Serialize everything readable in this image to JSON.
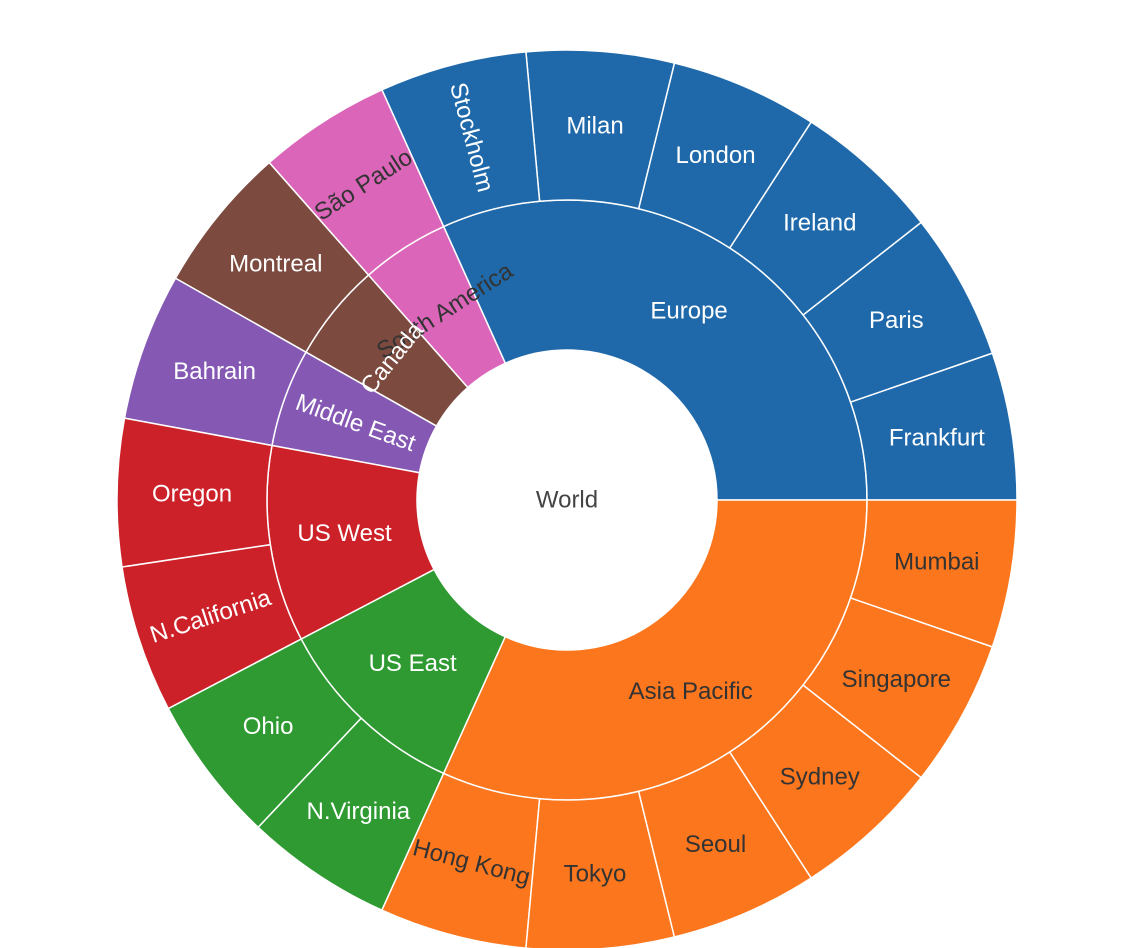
{
  "chart_data": {
    "type": "sunburst",
    "root": "World",
    "regions": [
      {
        "name": "Europe",
        "value": 6,
        "color": "#1f69aa",
        "label_color": "#ffffff",
        "children": [
          {
            "name": "Frankfurt",
            "value": 1
          },
          {
            "name": "Paris",
            "value": 1
          },
          {
            "name": "Ireland",
            "value": 1
          },
          {
            "name": "London",
            "value": 1
          },
          {
            "name": "Milan",
            "value": 1
          },
          {
            "name": "Stockholm",
            "value": 1
          }
        ]
      },
      {
        "name": "South America",
        "value": 0.9,
        "color": "#db65b9",
        "label_color": "#333333",
        "children": [
          {
            "name": "São Paulo",
            "value": 0.9
          }
        ]
      },
      {
        "name": "Canada",
        "value": 1,
        "color": "#7c4a3f",
        "label_color": "#ffffff",
        "children": [
          {
            "name": "Montreal",
            "value": 1
          }
        ]
      },
      {
        "name": "Middle East",
        "value": 1,
        "color": "#8458b3",
        "label_color": "#ffffff",
        "children": [
          {
            "name": "Bahrain",
            "value": 1
          }
        ]
      },
      {
        "name": "US West",
        "value": 2,
        "color": "#cc2128",
        "label_color": "#ffffff",
        "children": [
          {
            "name": "Oregon",
            "value": 1
          },
          {
            "name": "N.California",
            "value": 1
          }
        ]
      },
      {
        "name": "US East",
        "value": 2,
        "color": "#2e9a31",
        "label_color": "#ffffff",
        "children": [
          {
            "name": "Ohio",
            "value": 1
          },
          {
            "name": "N.Virginia",
            "value": 1
          }
        ]
      },
      {
        "name": "Asia Pacific",
        "value": 6,
        "color": "#fb761c",
        "label_color": "#333333",
        "children": [
          {
            "name": "Hong Kong",
            "value": 1
          },
          {
            "name": "Tokyo",
            "value": 1
          },
          {
            "name": "Seoul",
            "value": 1
          },
          {
            "name": "Sydney",
            "value": 1
          },
          {
            "name": "Singapore",
            "value": 1
          },
          {
            "name": "Mumbai",
            "value": 1
          }
        ]
      }
    ]
  }
}
